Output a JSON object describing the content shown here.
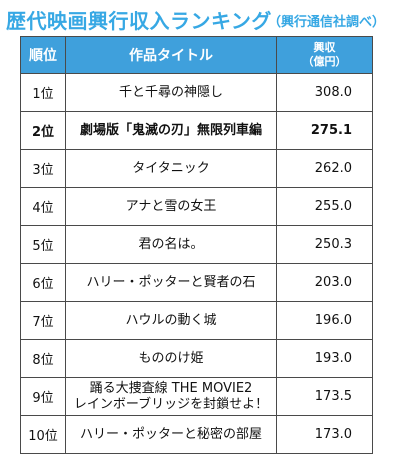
{
  "header": {
    "title": "歴代映画興行収入ランキング",
    "note": "（興行通信社調べ）"
  },
  "table": {
    "columns": {
      "rank": "順位",
      "title": "作品タイトル",
      "revenue_line1": "興収",
      "revenue_line2": "（億円）"
    },
    "rows": [
      {
        "rank": "1位",
        "title": "千と千尋の神隠し",
        "title2": "",
        "revenue": "308.0"
      },
      {
        "rank": "2位",
        "title": "劇場版「鬼滅の刃」無限列車編",
        "title2": "",
        "revenue": "275.1"
      },
      {
        "rank": "3位",
        "title": "タイタニック",
        "title2": "",
        "revenue": "262.0"
      },
      {
        "rank": "4位",
        "title": "アナと雪の女王",
        "title2": "",
        "revenue": "255.0"
      },
      {
        "rank": "5位",
        "title": "君の名は。",
        "title2": "",
        "revenue": "250.3"
      },
      {
        "rank": "6位",
        "title": "ハリー・ポッターと賢者の石",
        "title2": "",
        "revenue": "203.0"
      },
      {
        "rank": "7位",
        "title": "ハウルの動く城",
        "title2": "",
        "revenue": "196.0"
      },
      {
        "rank": "8位",
        "title": "もののけ姫",
        "title2": "",
        "revenue": "193.0"
      },
      {
        "rank": "9位",
        "title": "踊る大捜査線 THE MOVIE2",
        "title2": "レインボーブリッジを封鎖せよ！",
        "revenue": "173.5"
      },
      {
        "rank": "10位",
        "title": "ハリー・ポッターと秘密の部屋",
        "title2": "",
        "revenue": "173.0"
      }
    ]
  }
}
